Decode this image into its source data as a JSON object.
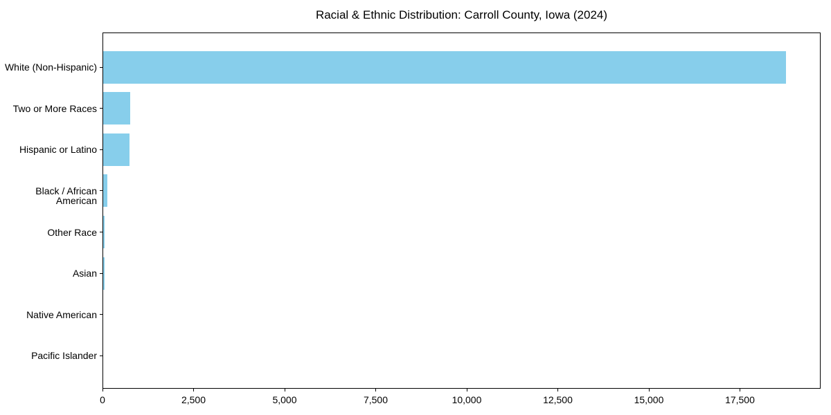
{
  "chart_data": {
    "type": "bar",
    "orientation": "horizontal",
    "title": "Racial & Ethnic Distribution: Carroll County, Iowa (2024)",
    "categories": [
      "White (Non-Hispanic)",
      "Two or More Races",
      "Hispanic or Latino",
      "Black / African American",
      "Other Race",
      "Asian",
      "Native American",
      "Pacific Islander"
    ],
    "values": [
      18770,
      760,
      740,
      130,
      65,
      50,
      15,
      5
    ],
    "x_ticks": [
      0,
      2500,
      5000,
      7500,
      10000,
      12500,
      15000,
      17500
    ],
    "x_tick_labels": [
      "0",
      "2,500",
      "5,000",
      "7,500",
      "10,000",
      "12,500",
      "15,000",
      "17,500"
    ],
    "xlim": [
      0,
      19715
    ],
    "xlabel": "",
    "ylabel": "",
    "grid": false,
    "legend_position": "none",
    "bar_color": "#87CEEB",
    "axis_color": "#000000",
    "text_color": "#000000",
    "background_color": "#ffffff"
  }
}
